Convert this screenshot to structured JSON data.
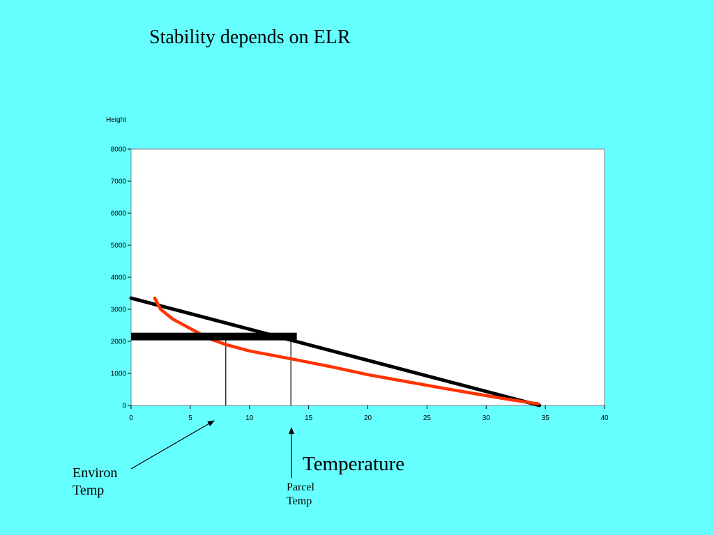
{
  "title": "Stability depends on ELR",
  "chart_data": {
    "type": "line",
    "xlabel": "Temperature",
    "ylabel": "Height",
    "xlim": [
      0,
      40
    ],
    "ylim": [
      0,
      8000
    ],
    "xticks": [
      0,
      5,
      10,
      15,
      20,
      25,
      30,
      35,
      40
    ],
    "yticks": [
      0,
      1000,
      2000,
      3000,
      4000,
      5000,
      6000,
      7000,
      8000
    ],
    "grid": false,
    "series": [
      {
        "color": "#000000",
        "x": [
          0,
          34.5
        ],
        "y": [
          3350,
          0
        ]
      },
      {
        "color": "#ff3300",
        "x": [
          2,
          2.5,
          3.5,
          5,
          6.5,
          8,
          10,
          12,
          14,
          17,
          20,
          23,
          26,
          29,
          32,
          34.4
        ],
        "y": [
          3350,
          3000,
          2700,
          2400,
          2100,
          1900,
          1700,
          1560,
          1420,
          1200,
          960,
          760,
          560,
          370,
          180,
          50
        ]
      }
    ],
    "annotations": {
      "bar": {
        "x": [
          0,
          14
        ],
        "y": 2150,
        "color": "#000000"
      },
      "guides": [
        {
          "x": 8,
          "y": [
            0,
            2150
          ]
        },
        {
          "x": 13.5,
          "y": [
            0,
            2150
          ]
        }
      ],
      "environ_temp": "Environ\nTemp",
      "parcel_temp": "Parcel\nTemp"
    }
  }
}
